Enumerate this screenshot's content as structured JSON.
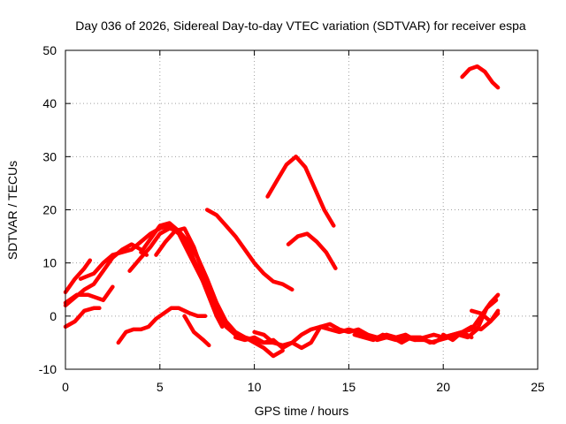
{
  "chart_data": {
    "type": "line",
    "title": "Day 036 of 2026, Sidereal Day-to-day VTEC variation (SDTVAR) for receiver espa",
    "xlabel": "GPS time / hours",
    "ylabel": "SDTVAR / TECUs",
    "xlim": [
      0,
      25
    ],
    "ylim": [
      -10,
      50
    ],
    "xticks": [
      0,
      5,
      10,
      15,
      20,
      25
    ],
    "yticks": [
      -10,
      0,
      10,
      20,
      30,
      40,
      50
    ],
    "grid": true,
    "legend": "none",
    "colors": {
      "series": "#ff0000",
      "grid": "#a0a0a0",
      "frame": "#000000"
    },
    "series": [
      {
        "name": "s1",
        "x": [
          0,
          0.5,
          1.0,
          1.3
        ],
        "y": [
          4.5,
          7.0,
          9.0,
          10.5
        ]
      },
      {
        "name": "s2",
        "x": [
          0,
          0.5,
          1.0,
          1.5,
          2.0,
          2.5,
          3.0,
          3.5,
          4.0,
          4.3
        ],
        "y": [
          2.0,
          3.5,
          5.0,
          6.0,
          8.5,
          11.0,
          12.5,
          13.5,
          12.5,
          11.5
        ]
      },
      {
        "name": "s3",
        "x": [
          0,
          0.6,
          1.2,
          1.6,
          2.0,
          2.5
        ],
        "y": [
          2.5,
          4.0,
          4.0,
          3.5,
          3.0,
          5.5
        ]
      },
      {
        "name": "s4",
        "x": [
          0,
          0.5,
          1.0,
          1.5,
          1.8
        ],
        "y": [
          -2.0,
          -1.0,
          1.0,
          1.5,
          1.5
        ]
      },
      {
        "name": "s5",
        "x": [
          0.8,
          1.5,
          2.0,
          2.5,
          3.0,
          3.5,
          4.0,
          4.5,
          5.0,
          5.5,
          6.0,
          6.5,
          7.0,
          7.5,
          8.0,
          8.5,
          9.0,
          9.5,
          10.0,
          10.5,
          11.0
        ],
        "y": [
          7.0,
          8.0,
          10.0,
          11.5,
          12.0,
          12.5,
          14.0,
          15.5,
          16.5,
          17.0,
          15.5,
          12.0,
          8.5,
          5.0,
          1.0,
          -2.0,
          -3.5,
          -4.0,
          -4.5,
          -5.0,
          -5.0
        ]
      },
      {
        "name": "s6",
        "x": [
          3.4,
          4.0,
          4.5,
          5.0,
          5.5,
          6.0,
          6.5,
          7.0,
          7.5,
          8.0,
          8.5,
          9.0,
          9.5,
          10.0,
          10.5,
          11.0,
          11.5
        ],
        "y": [
          8.5,
          11.0,
          13.0,
          15.5,
          16.5,
          16.0,
          14.0,
          11.0,
          7.0,
          2.5,
          -1.0,
          -3.0,
          -4.0,
          -5.0,
          -6.0,
          -7.5,
          -6.5
        ]
      },
      {
        "name": "s7",
        "x": [
          4.0,
          4.5,
          5.0,
          5.5,
          6.0,
          6.5,
          7.0,
          7.5,
          8.0,
          8.3
        ],
        "y": [
          12.0,
          14.5,
          17.0,
          17.5,
          16.0,
          13.0,
          9.0,
          4.5,
          0.0,
          -2.0
        ]
      },
      {
        "name": "s8",
        "x": [
          4.8,
          5.3,
          5.8,
          6.3,
          6.8,
          7.3,
          7.8,
          8.2
        ],
        "y": [
          11.5,
          14.0,
          16.0,
          16.5,
          13.0,
          8.0,
          3.5,
          1.0
        ]
      },
      {
        "name": "s9",
        "x": [
          2.8,
          3.2,
          3.6,
          4.0,
          4.4,
          4.8,
          5.2,
          5.6,
          6.0,
          6.3,
          6.6,
          7.0,
          7.4
        ],
        "y": [
          -5.0,
          -3.0,
          -2.5,
          -2.5,
          -2.0,
          -0.5,
          0.5,
          1.5,
          1.5,
          1.0,
          0.5,
          0.0,
          0.0
        ]
      },
      {
        "name": "s10",
        "x": [
          6.3,
          6.8,
          7.3,
          7.6
        ],
        "y": [
          0.0,
          -3.0,
          -4.5,
          -5.5
        ]
      },
      {
        "name": "s11",
        "x": [
          7.5,
          8.0,
          8.5,
          9.0,
          9.5,
          10.0,
          10.5,
          11.0,
          11.5,
          12.0
        ],
        "y": [
          20.0,
          19.0,
          17.0,
          15.0,
          12.5,
          10.0,
          8.0,
          6.5,
          6.0,
          5.0
        ]
      },
      {
        "name": "s12",
        "x": [
          10.7,
          11.2,
          11.7,
          12.2,
          12.7,
          13.2,
          13.7,
          14.2
        ],
        "y": [
          22.5,
          25.5,
          28.5,
          30.0,
          28.0,
          24.0,
          20.0,
          17.0
        ]
      },
      {
        "name": "s13",
        "x": [
          11.8,
          12.3,
          12.8,
          13.3,
          13.8,
          14.3
        ],
        "y": [
          13.5,
          15.0,
          15.5,
          14.0,
          12.0,
          9.0
        ]
      },
      {
        "name": "s14",
        "x": [
          9.0,
          9.5,
          10.0,
          10.5,
          11.0,
          11.5,
          12.0,
          12.5,
          13.0,
          13.5,
          14.0,
          14.5,
          15.0,
          15.5,
          16.0,
          16.5,
          17.0,
          17.5,
          18.0,
          18.5,
          19.0,
          19.5,
          20.0,
          20.5,
          21.0,
          21.5
        ],
        "y": [
          -4.0,
          -4.5,
          -4.0,
          -5.0,
          -4.5,
          -6.0,
          -5.0,
          -3.5,
          -2.5,
          -2.0,
          -1.5,
          -2.5,
          -3.0,
          -2.5,
          -3.5,
          -4.0,
          -3.5,
          -4.0,
          -3.5,
          -4.5,
          -4.0,
          -3.5,
          -4.0,
          -3.5,
          -3.0,
          -4.0
        ]
      },
      {
        "name": "s15",
        "x": [
          10.0,
          10.5,
          11.0,
          11.5,
          12.0,
          12.5,
          13.0,
          13.5,
          14.0,
          14.5,
          15.0,
          15.5,
          16.0,
          16.5,
          17.0,
          17.5,
          18.0,
          18.5,
          19.0,
          19.5,
          20.0,
          20.5,
          21.0,
          21.5,
          22.0,
          22.5,
          22.9
        ],
        "y": [
          -3.0,
          -3.5,
          -5.0,
          -5.5,
          -5.0,
          -6.0,
          -5.0,
          -2.0,
          -2.5,
          -3.0,
          -2.5,
          -3.0,
          -3.5,
          -4.5,
          -4.0,
          -4.5,
          -4.0,
          -4.5,
          -4.5,
          -5.0,
          -4.0,
          -3.5,
          -3.0,
          -2.5,
          0.0,
          2.5,
          4.0
        ]
      },
      {
        "name": "s16",
        "x": [
          15.3,
          15.8,
          16.3,
          16.8,
          17.3,
          17.8,
          18.3,
          18.8,
          19.3,
          19.8,
          20.3,
          20.8,
          21.3,
          21.8,
          22.3,
          22.8
        ],
        "y": [
          -3.5,
          -4.0,
          -4.5,
          -3.5,
          -4.0,
          -5.0,
          -4.0,
          -4.0,
          -5.0,
          -4.5,
          -4.0,
          -3.5,
          -4.0,
          -2.5,
          1.5,
          3.0
        ]
      },
      {
        "name": "s17",
        "x": [
          20.0,
          20.5,
          21.0,
          21.5,
          22.0,
          22.5,
          22.9
        ],
        "y": [
          -3.5,
          -4.5,
          -3.0,
          -2.0,
          -2.5,
          -1.0,
          0.5
        ]
      },
      {
        "name": "s18",
        "x": [
          21.5,
          22.0,
          22.5,
          22.9
        ],
        "y": [
          1.0,
          0.5,
          -1.0,
          1.0
        ]
      },
      {
        "name": "s19",
        "x": [
          21.0,
          21.4,
          21.8,
          22.2,
          22.6,
          22.9
        ],
        "y": [
          45.0,
          46.5,
          47.0,
          46.0,
          44.0,
          43.0
        ]
      }
    ]
  }
}
